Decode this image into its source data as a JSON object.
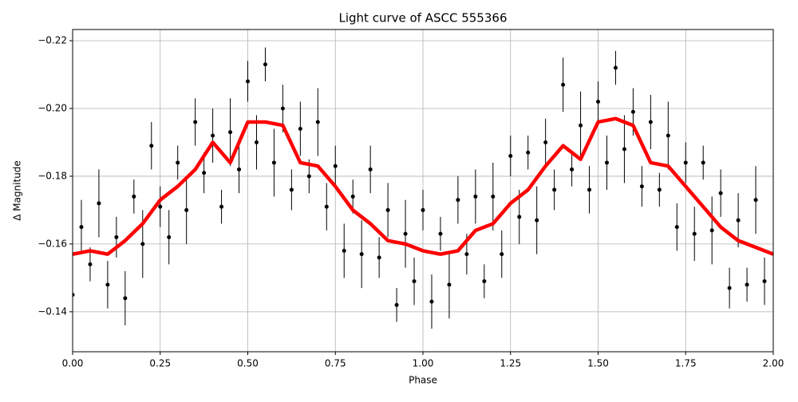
{
  "chart_data": {
    "type": "scatter",
    "title": "Light curve of ASCC 555366",
    "x_label": "Phase",
    "y_label": "Δ Magnitude",
    "xlim": [
      0,
      2
    ],
    "ylim": [
      -0.1282,
      -0.2233
    ],
    "grid": true,
    "xticks": [
      {
        "value": 0,
        "label": "0.00"
      },
      {
        "value": 0.25,
        "label": "0.25"
      },
      {
        "value": 0.5,
        "label": "0.50"
      },
      {
        "value": 0.75,
        "label": "0.75"
      },
      {
        "value": 1,
        "label": "1.00"
      },
      {
        "value": 1.25,
        "label": "1.25"
      },
      {
        "value": 1.5,
        "label": "1.50"
      },
      {
        "value": 1.75,
        "label": "1.75"
      },
      {
        "value": 2,
        "label": "2.00"
      }
    ],
    "yticks": [
      {
        "value": -0.14,
        "label": "−0.14"
      },
      {
        "value": -0.16,
        "label": "−0.16"
      },
      {
        "value": -0.18,
        "label": "−0.18"
      },
      {
        "value": -0.2,
        "label": "−0.20"
      },
      {
        "value": -0.22,
        "label": "−0.22"
      }
    ],
    "series": [
      {
        "type": "scatter",
        "color": "#000000",
        "x": [
          0,
          0.025,
          0.05,
          0.075,
          0.1,
          0.125,
          0.15,
          0.175,
          0.2,
          0.225,
          0.25,
          0.275,
          0.3,
          0.325,
          0.35,
          0.375,
          0.4,
          0.425,
          0.45,
          0.475,
          0.5,
          0.525,
          0.55,
          0.575,
          0.6,
          0.625,
          0.65,
          0.675,
          0.7,
          0.725,
          0.75,
          0.775,
          0.8,
          0.825,
          0.85,
          0.875,
          0.9,
          0.925,
          0.95,
          0.975,
          1,
          1.025,
          1.05,
          1.075,
          1.1,
          1.125,
          1.15,
          1.175,
          1.2,
          1.225,
          1.25,
          1.275,
          1.3,
          1.325,
          1.35,
          1.375,
          1.4,
          1.425,
          1.45,
          1.475,
          1.5,
          1.525,
          1.55,
          1.575,
          1.6,
          1.625,
          1.65,
          1.675,
          1.7,
          1.725,
          1.75,
          1.775,
          1.8,
          1.825,
          1.85,
          1.875,
          1.9,
          1.925,
          1.95,
          1.975
        ],
        "values": [
          -0.145,
          -0.165,
          -0.154,
          -0.172,
          -0.148,
          -0.162,
          -0.144,
          -0.174,
          -0.16,
          -0.189,
          -0.171,
          -0.162,
          -0.184,
          -0.17,
          -0.196,
          -0.181,
          -0.192,
          -0.171,
          -0.193,
          -0.182,
          -0.208,
          -0.19,
          -0.213,
          -0.184,
          -0.2,
          -0.176,
          -0.194,
          -0.18,
          -0.196,
          -0.171,
          -0.183,
          -0.158,
          -0.174,
          -0.157,
          -0.182,
          -0.156,
          -0.17,
          -0.142,
          -0.163,
          -0.149,
          -0.17,
          -0.143,
          -0.163,
          -0.148,
          -0.173,
          -0.157,
          -0.174,
          -0.149,
          -0.174,
          -0.157,
          -0.186,
          -0.168,
          -0.187,
          -0.167,
          -0.19,
          -0.176,
          -0.207,
          -0.182,
          -0.195,
          -0.176,
          -0.202,
          -0.184,
          -0.212,
          -0.188,
          -0.199,
          -0.177,
          -0.196,
          -0.176,
          -0.192,
          -0.165,
          -0.184,
          -0.163,
          -0.184,
          -0.164,
          -0.175,
          -0.147,
          -0.167,
          -0.148,
          -0.173,
          -0.149
        ],
        "errors": [
          0.006,
          0.008,
          0.005,
          0.01,
          0.007,
          0.006,
          0.008,
          0.005,
          0.01,
          0.007,
          0.006,
          0.008,
          0.005,
          0.01,
          0.007,
          0.006,
          0.008,
          0.005,
          0.01,
          0.007,
          0.006,
          0.008,
          0.005,
          0.01,
          0.007,
          0.006,
          0.008,
          0.005,
          0.01,
          0.007,
          0.006,
          0.008,
          0.005,
          0.01,
          0.007,
          0.006,
          0.008,
          0.005,
          0.01,
          0.007,
          0.006,
          0.008,
          0.005,
          0.01,
          0.007,
          0.006,
          0.008,
          0.005,
          0.01,
          0.007,
          0.006,
          0.008,
          0.005,
          0.01,
          0.007,
          0.006,
          0.008,
          0.005,
          0.01,
          0.007,
          0.006,
          0.008,
          0.005,
          0.01,
          0.007,
          0.006,
          0.008,
          0.005,
          0.01,
          0.007,
          0.006,
          0.008,
          0.005,
          0.01,
          0.007,
          0.006,
          0.008,
          0.005,
          0.01,
          0.007
        ]
      },
      {
        "type": "line",
        "color": "#ff0000",
        "x": [
          0,
          0.05,
          0.1,
          0.15,
          0.2,
          0.25,
          0.3,
          0.35,
          0.4,
          0.45,
          0.5,
          0.55,
          0.6,
          0.65,
          0.7,
          0.75,
          0.8,
          0.85,
          0.9,
          0.95,
          1,
          1.05,
          1.1,
          1.15,
          1.2,
          1.25,
          1.3,
          1.35,
          1.4,
          1.45,
          1.5,
          1.55,
          1.6,
          1.65,
          1.7,
          1.75,
          1.8,
          1.85,
          1.9,
          1.95,
          2
        ],
        "values": [
          -0.157,
          -0.158,
          -0.157,
          -0.161,
          -0.166,
          -0.173,
          -0.177,
          -0.182,
          -0.19,
          -0.184,
          -0.196,
          -0.196,
          -0.195,
          -0.184,
          -0.183,
          -0.177,
          -0.17,
          -0.166,
          -0.161,
          -0.16,
          -0.158,
          -0.157,
          -0.158,
          -0.164,
          -0.166,
          -0.172,
          -0.176,
          -0.183,
          -0.189,
          -0.185,
          -0.196,
          -0.197,
          -0.195,
          -0.184,
          -0.183,
          -0.177,
          -0.171,
          -0.165,
          -0.161,
          -0.159,
          -0.157
        ]
      }
    ]
  }
}
